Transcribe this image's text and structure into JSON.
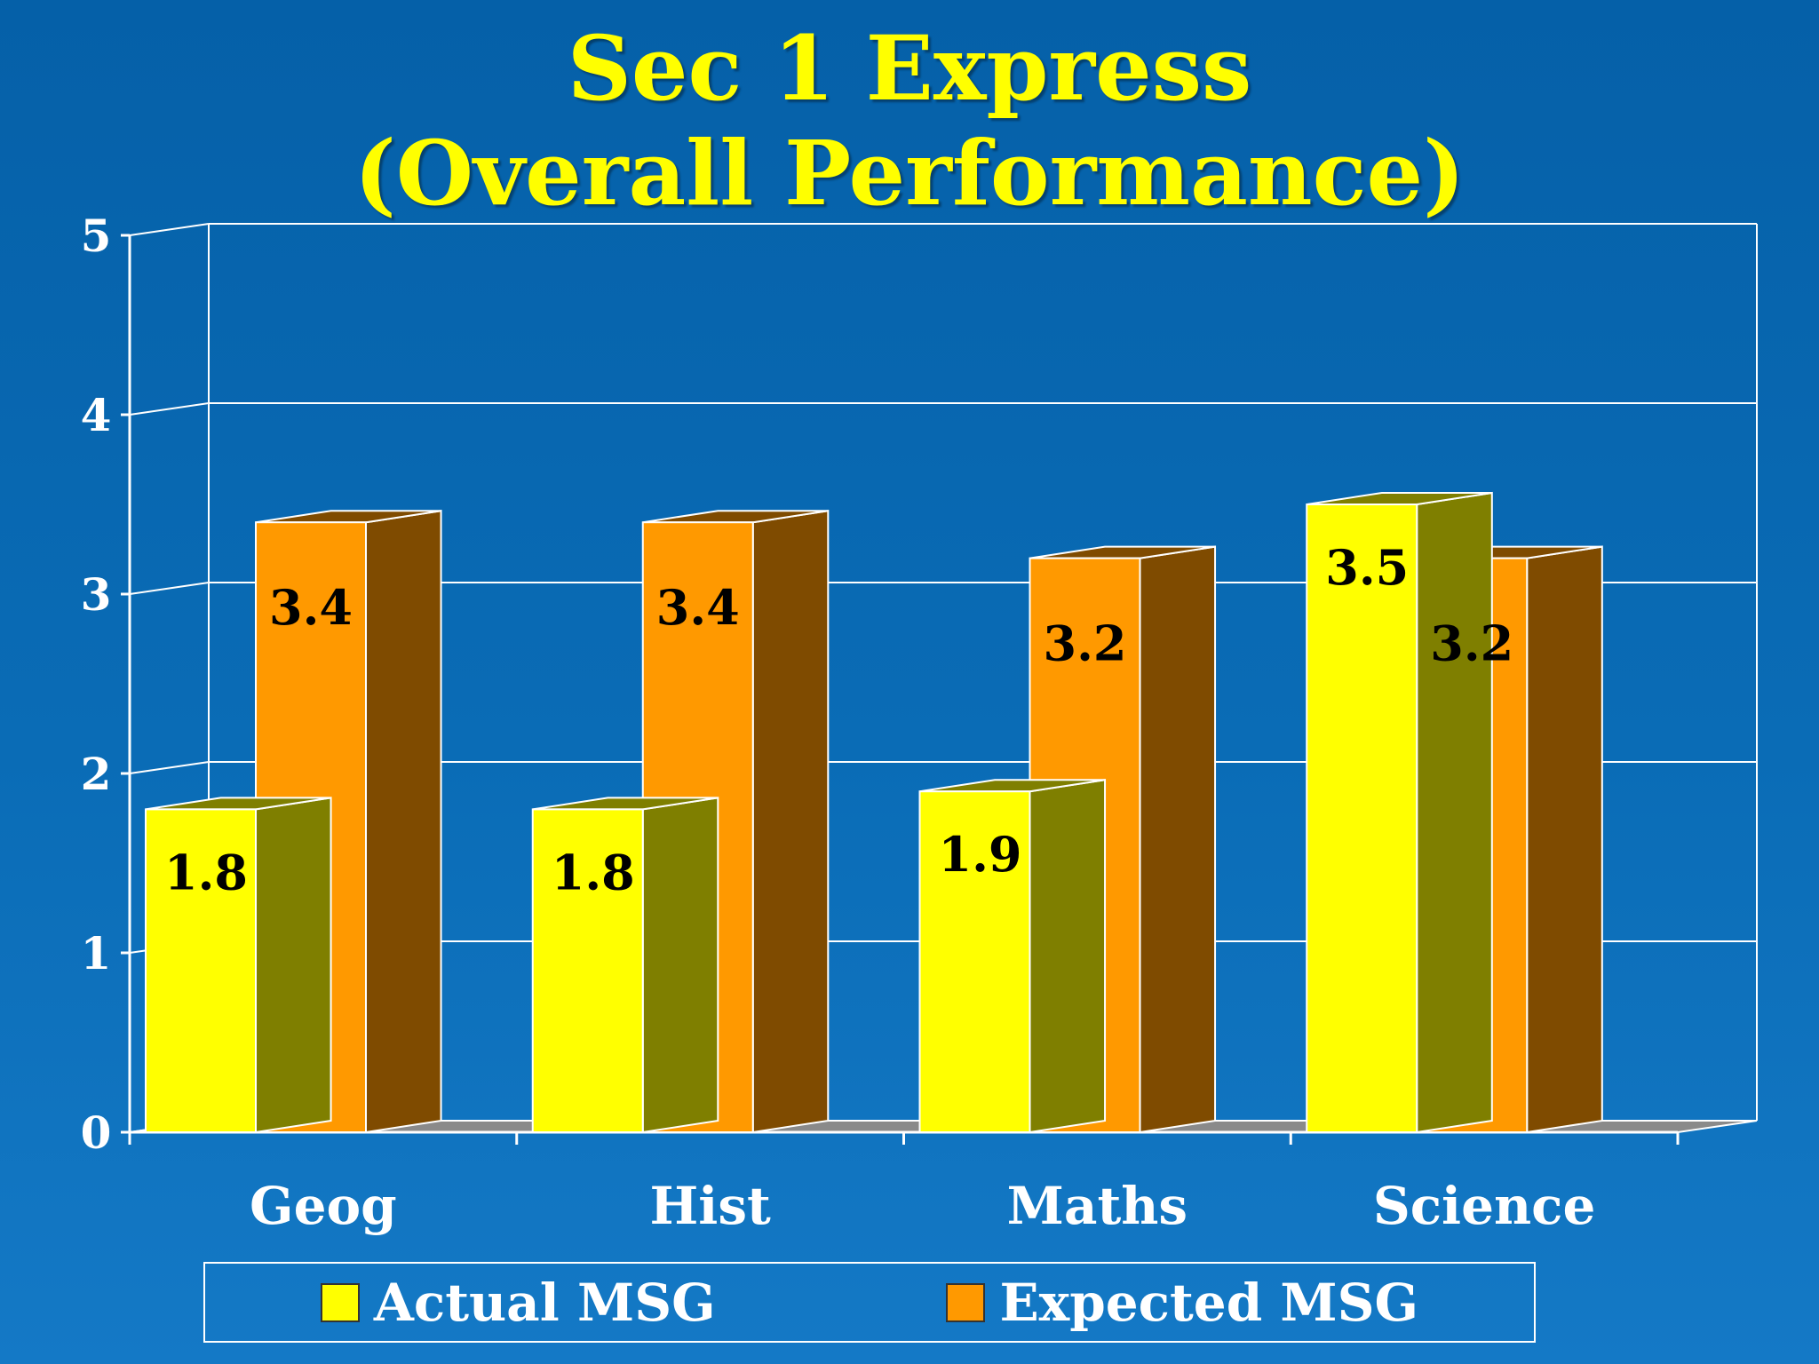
{
  "title_lines": [
    "Sec 1 Express",
    "(Overall Performance)"
  ],
  "chart_data": {
    "type": "bar",
    "categories": [
      "Geog",
      "Hist",
      "Maths",
      "Science"
    ],
    "series": [
      {
        "name": "Actual MSG",
        "values": [
          1.8,
          1.8,
          1.9,
          3.5
        ],
        "color": "#ffff00"
      },
      {
        "name": "Expected MSG",
        "values": [
          3.4,
          3.4,
          3.2,
          3.2
        ],
        "color": "#ff9900"
      }
    ],
    "ylim": [
      0,
      5
    ],
    "yticks": [
      "0",
      "1",
      "2",
      "3",
      "4",
      "5"
    ],
    "data_labels": [
      [
        "1.8",
        "1.8",
        "1.9",
        "3.5"
      ],
      [
        "3.4",
        "3.4",
        "3.2",
        "3.2"
      ]
    ],
    "grid": true,
    "legend_position": "bottom",
    "style": "3d-clustered-bar"
  },
  "colors": {
    "background": "#0a6cb6",
    "title": "#ffff00",
    "actual": "#ffff00",
    "expected": "#ff9900",
    "expected_side": "#7f4b00",
    "actual_side": "#7f7f00"
  }
}
